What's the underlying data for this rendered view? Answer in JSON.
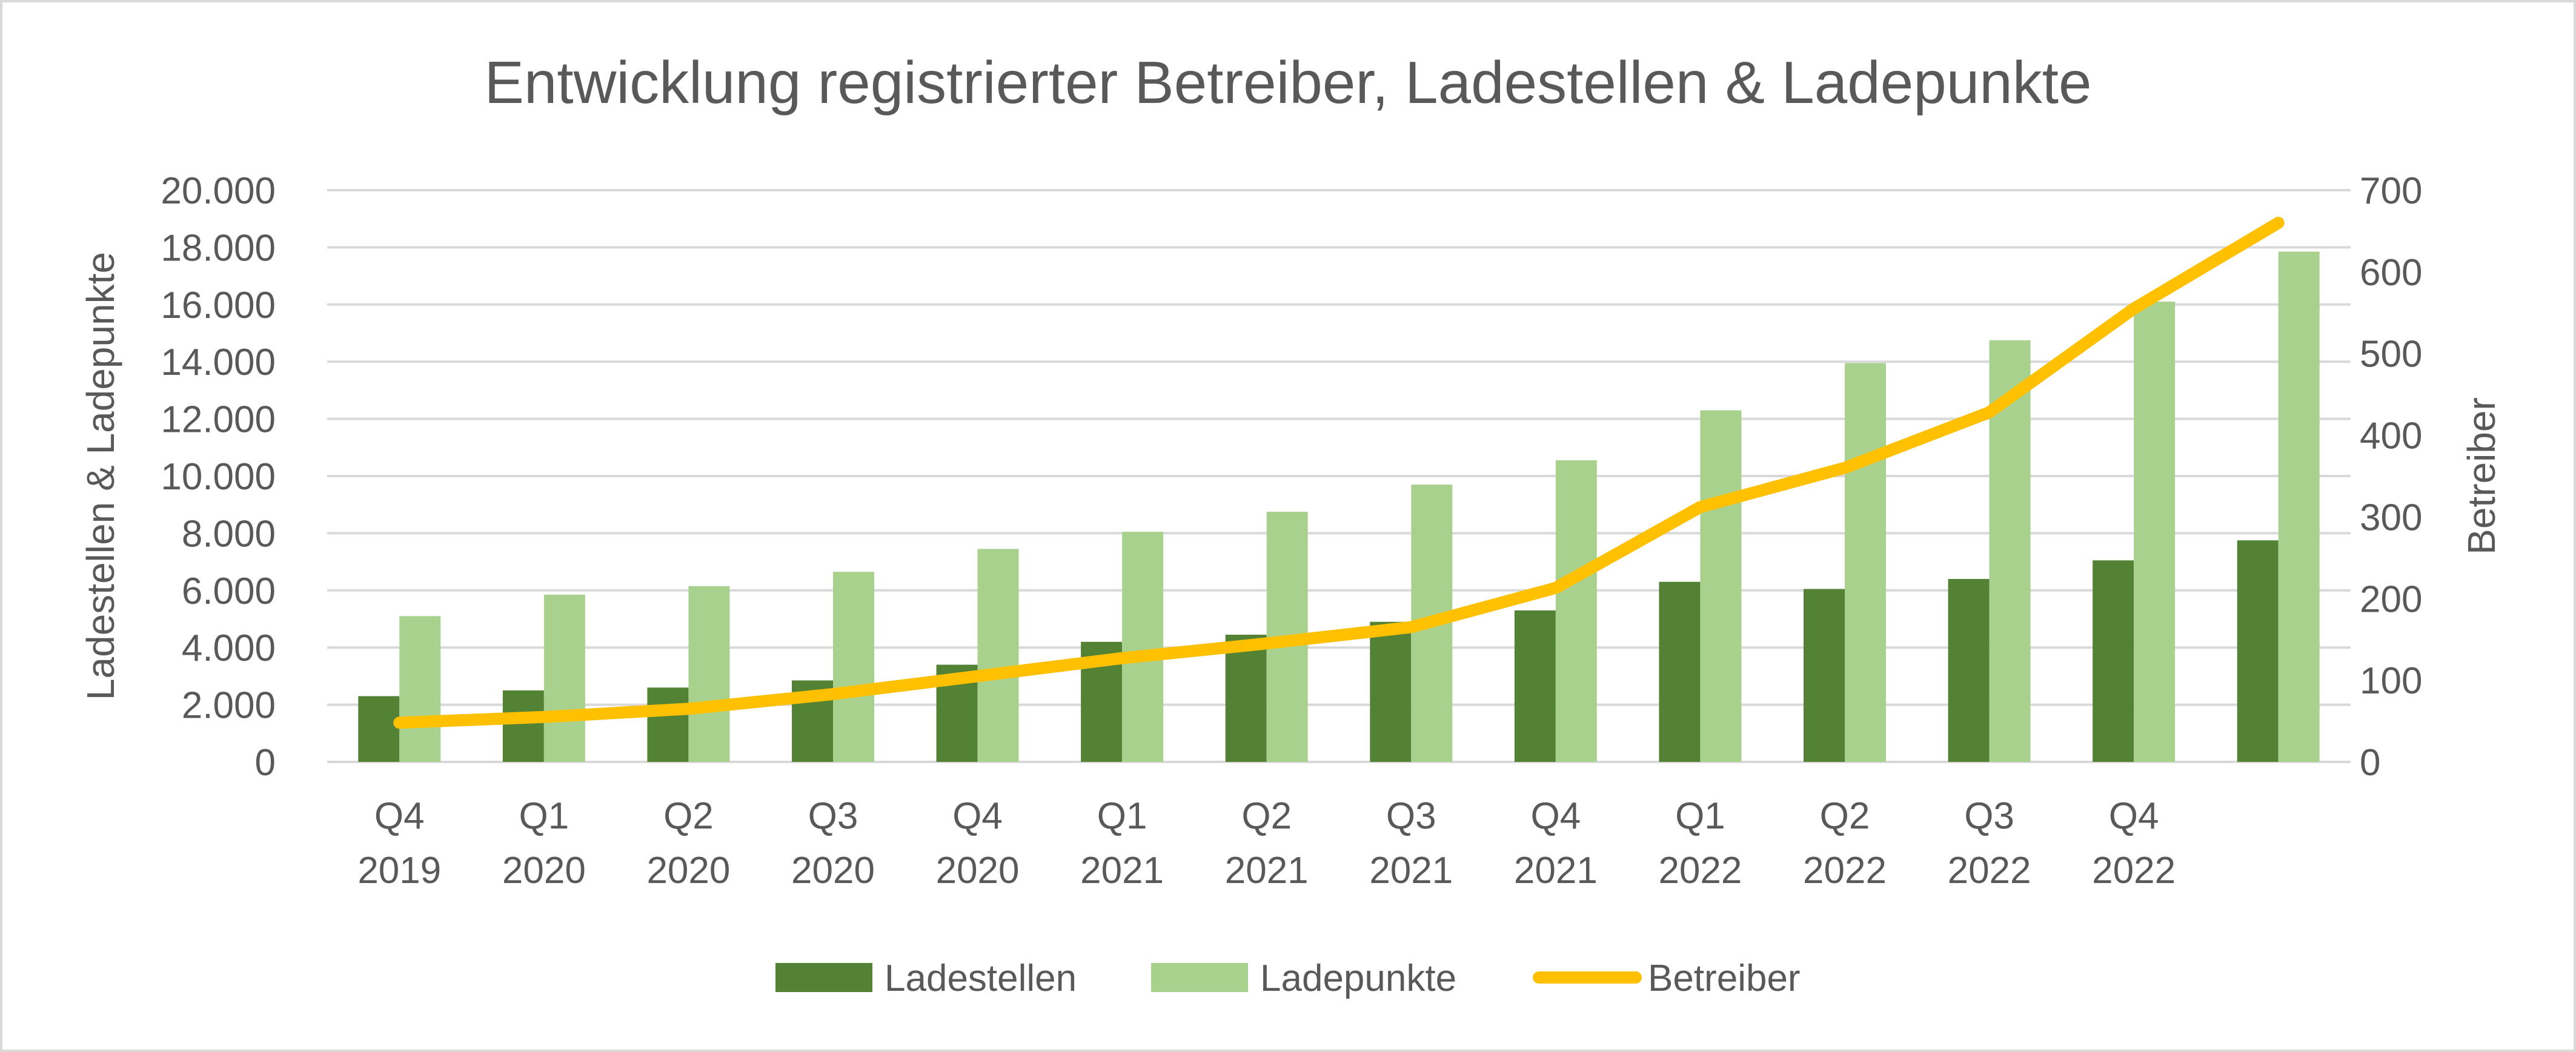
{
  "chart_data": {
    "type": "bar",
    "title": "Entwicklung registrierter Betreiber, Ladestellen & Ladepunkte",
    "categories": [
      [
        "Q4",
        "2019"
      ],
      [
        "Q1",
        "2020"
      ],
      [
        "Q2",
        "2020"
      ],
      [
        "Q3",
        "2020"
      ],
      [
        "Q4",
        "2020"
      ],
      [
        "Q1",
        "2021"
      ],
      [
        "Q2",
        "2021"
      ],
      [
        "Q3",
        "2021"
      ],
      [
        "Q4",
        "2021"
      ],
      [
        "Q1",
        "2022"
      ],
      [
        "Q2",
        "2022"
      ],
      [
        "Q3",
        "2022"
      ],
      [
        "Q4",
        "2022"
      ],
      [
        "",
        ""
      ]
    ],
    "ylabel": "Ladestellen & Ladepunkte",
    "y2label": "Betreiber",
    "ylim": [
      0,
      20000
    ],
    "y2lim": [
      0,
      700
    ],
    "yticks": [
      "0",
      "2.000",
      "4.000",
      "6.000",
      "8.000",
      "10.000",
      "12.000",
      "14.000",
      "16.000",
      "18.000",
      "20.000"
    ],
    "y2ticks": [
      "0",
      "100",
      "200",
      "300",
      "400",
      "500",
      "600",
      "700"
    ],
    "grid": true,
    "legend_position": "bottom",
    "series": [
      {
        "name": "Ladestellen",
        "type": "bar",
        "axis": "left",
        "color": "#548235",
        "values": [
          2300,
          2500,
          2600,
          2850,
          3400,
          4200,
          4450,
          4900,
          5300,
          6300,
          6050,
          6400,
          7050,
          7750
        ]
      },
      {
        "name": "Ladepunkte",
        "type": "bar",
        "axis": "left",
        "color": "#A9D18E",
        "values": [
          5100,
          5850,
          6150,
          6650,
          7450,
          8050,
          8750,
          9700,
          10550,
          12300,
          13950,
          14750,
          16100,
          17850
        ]
      },
      {
        "name": "Betreiber",
        "type": "line",
        "axis": "right",
        "color": "#FFC000",
        "values": [
          48,
          55,
          65,
          83,
          105,
          127,
          145,
          165,
          213,
          312,
          360,
          428,
          555,
          660
        ]
      }
    ]
  }
}
